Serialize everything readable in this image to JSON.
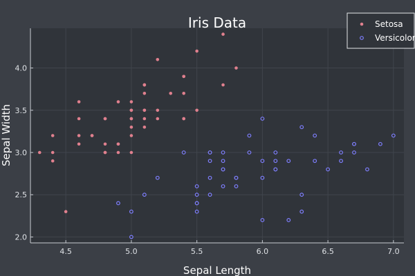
{
  "chart_data": {
    "type": "scatter",
    "title": "Iris Data",
    "xlabel": "Sepal Length",
    "ylabel": "Sepal Width",
    "xlim": [
      4.23,
      7.08
    ],
    "ylim": [
      1.93,
      4.47
    ],
    "xticks": [
      4.5,
      5.0,
      5.5,
      6.0,
      6.5,
      7.0
    ],
    "yticks": [
      2.0,
      2.5,
      3.0,
      3.5,
      4.0
    ],
    "xtick_labels": [
      "4.5",
      "5.0",
      "5.5",
      "6.0",
      "6.5",
      "7.0"
    ],
    "ytick_labels": [
      "2.0",
      "2.5",
      "3.0",
      "3.5",
      "4.0"
    ],
    "grid": true,
    "legend_position": "top-right",
    "series": [
      {
        "name": "Setosa",
        "color": "#e0808e",
        "marker": "filled-circle",
        "points": [
          [
            5.1,
            3.5
          ],
          [
            4.9,
            3.0
          ],
          [
            4.7,
            3.2
          ],
          [
            4.6,
            3.1
          ],
          [
            5.0,
            3.6
          ],
          [
            5.4,
            3.9
          ],
          [
            4.6,
            3.4
          ],
          [
            5.0,
            3.4
          ],
          [
            4.4,
            2.9
          ],
          [
            4.9,
            3.1
          ],
          [
            5.4,
            3.7
          ],
          [
            4.8,
            3.4
          ],
          [
            4.8,
            3.0
          ],
          [
            4.3,
            3.0
          ],
          [
            5.8,
            4.0
          ],
          [
            5.7,
            4.4
          ],
          [
            5.4,
            3.9
          ],
          [
            5.1,
            3.5
          ],
          [
            5.7,
            3.8
          ],
          [
            5.1,
            3.8
          ],
          [
            5.4,
            3.4
          ],
          [
            5.1,
            3.7
          ],
          [
            4.6,
            3.6
          ],
          [
            5.1,
            3.3
          ],
          [
            4.8,
            3.4
          ],
          [
            5.0,
            3.0
          ],
          [
            5.0,
            3.4
          ],
          [
            5.2,
            3.5
          ],
          [
            5.2,
            3.4
          ],
          [
            4.7,
            3.2
          ],
          [
            4.8,
            3.1
          ],
          [
            5.4,
            3.4
          ],
          [
            5.2,
            4.1
          ],
          [
            5.5,
            4.2
          ],
          [
            4.9,
            3.1
          ],
          [
            5.0,
            3.2
          ],
          [
            5.5,
            3.5
          ],
          [
            4.9,
            3.6
          ],
          [
            4.4,
            3.0
          ],
          [
            5.1,
            3.4
          ],
          [
            5.0,
            3.5
          ],
          [
            4.5,
            2.3
          ],
          [
            4.4,
            3.2
          ],
          [
            5.0,
            3.5
          ],
          [
            5.1,
            3.8
          ],
          [
            4.8,
            3.0
          ],
          [
            5.1,
            3.8
          ],
          [
            4.6,
            3.2
          ],
          [
            5.3,
            3.7
          ],
          [
            5.0,
            3.3
          ]
        ]
      },
      {
        "name": "Versicolor",
        "color": "#7f7fff",
        "marker": "open-circle",
        "points": [
          [
            7.0,
            3.2
          ],
          [
            6.4,
            3.2
          ],
          [
            6.9,
            3.1
          ],
          [
            5.5,
            2.3
          ],
          [
            6.5,
            2.8
          ],
          [
            5.7,
            2.8
          ],
          [
            6.3,
            3.3
          ],
          [
            4.9,
            2.4
          ],
          [
            6.6,
            2.9
          ],
          [
            5.2,
            2.7
          ],
          [
            5.0,
            2.0
          ],
          [
            5.9,
            3.0
          ],
          [
            6.0,
            2.2
          ],
          [
            6.1,
            2.9
          ],
          [
            5.6,
            2.9
          ],
          [
            6.7,
            3.1
          ],
          [
            5.6,
            3.0
          ],
          [
            5.8,
            2.7
          ],
          [
            6.2,
            2.2
          ],
          [
            5.6,
            2.5
          ],
          [
            5.9,
            3.2
          ],
          [
            6.1,
            2.8
          ],
          [
            6.3,
            2.5
          ],
          [
            6.1,
            2.8
          ],
          [
            6.4,
            2.9
          ],
          [
            6.6,
            3.0
          ],
          [
            6.8,
            2.8
          ],
          [
            6.7,
            3.0
          ],
          [
            6.0,
            2.9
          ],
          [
            5.7,
            2.6
          ],
          [
            5.5,
            2.4
          ],
          [
            5.5,
            2.4
          ],
          [
            5.8,
            2.7
          ],
          [
            6.0,
            2.7
          ],
          [
            5.4,
            3.0
          ],
          [
            6.0,
            3.4
          ],
          [
            6.7,
            3.1
          ],
          [
            6.3,
            2.3
          ],
          [
            5.6,
            3.0
          ],
          [
            5.5,
            2.5
          ],
          [
            5.5,
            2.6
          ],
          [
            6.1,
            3.0
          ],
          [
            5.8,
            2.6
          ],
          [
            5.0,
            2.3
          ],
          [
            5.6,
            2.7
          ],
          [
            5.7,
            3.0
          ],
          [
            5.7,
            2.9
          ],
          [
            6.2,
            2.9
          ],
          [
            5.1,
            2.5
          ],
          [
            5.7,
            2.8
          ]
        ]
      }
    ]
  }
}
